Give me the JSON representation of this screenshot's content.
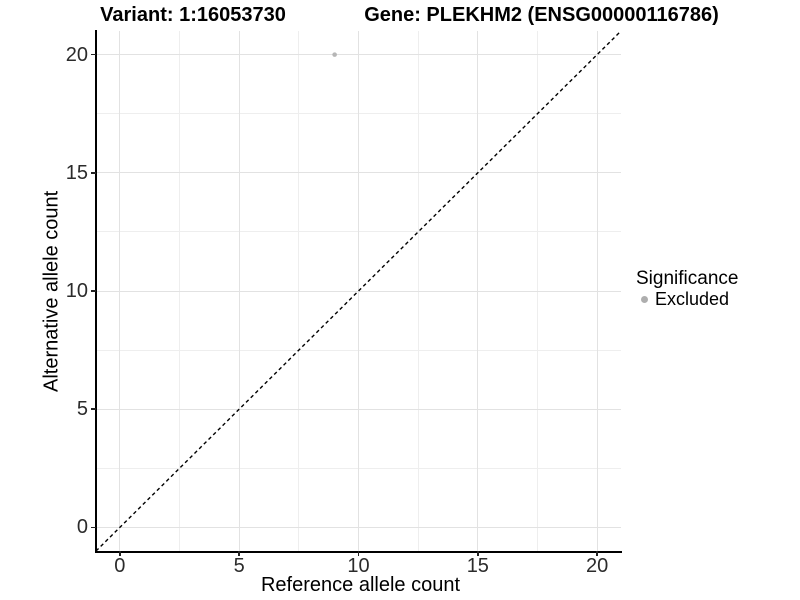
{
  "figure": {
    "variant_title": "Variant: 1:16053730",
    "gene_title": "Gene: PLEKHM2 (ENSG00000116786)"
  },
  "axes": {
    "x": {
      "label": "Reference allele count"
    },
    "y": {
      "label": "Alternative allele count"
    }
  },
  "legend": {
    "title": "Significance",
    "items": [
      {
        "label": "Excluded",
        "color": "#aeaeae"
      }
    ]
  },
  "chart_data": {
    "type": "scatter",
    "title_left": "Variant: 1:16053730",
    "title_right": "Gene: PLEKHM2 (ENSG00000116786)",
    "xlabel": "Reference allele count",
    "ylabel": "Alternative allele count",
    "xlim": [
      -1,
      21
    ],
    "ylim": [
      -1,
      21
    ],
    "x_ticks": [
      0,
      5,
      10,
      15,
      20
    ],
    "y_ticks": [
      0,
      5,
      10,
      15,
      20
    ],
    "x_minor_ticks": [
      2.5,
      7.5,
      12.5,
      17.5
    ],
    "y_minor_ticks": [
      2.5,
      7.5,
      12.5,
      17.5
    ],
    "grid": true,
    "legend_position": "right",
    "series": [
      {
        "name": "Excluded",
        "color": "#aeaeae",
        "points": [
          {
            "x": 9,
            "y": 20
          }
        ]
      }
    ],
    "reference_line": {
      "type": "identity",
      "slope": 1,
      "intercept": 0,
      "style": "dashed",
      "color": "#000000"
    }
  },
  "colors": {
    "background": "#ffffff",
    "grid_major": "#e2e2e2",
    "grid_minor": "#eeeeee",
    "axis_line": "#000000",
    "tick_text": "#2b2b2b",
    "point": "#b6b6b6"
  }
}
